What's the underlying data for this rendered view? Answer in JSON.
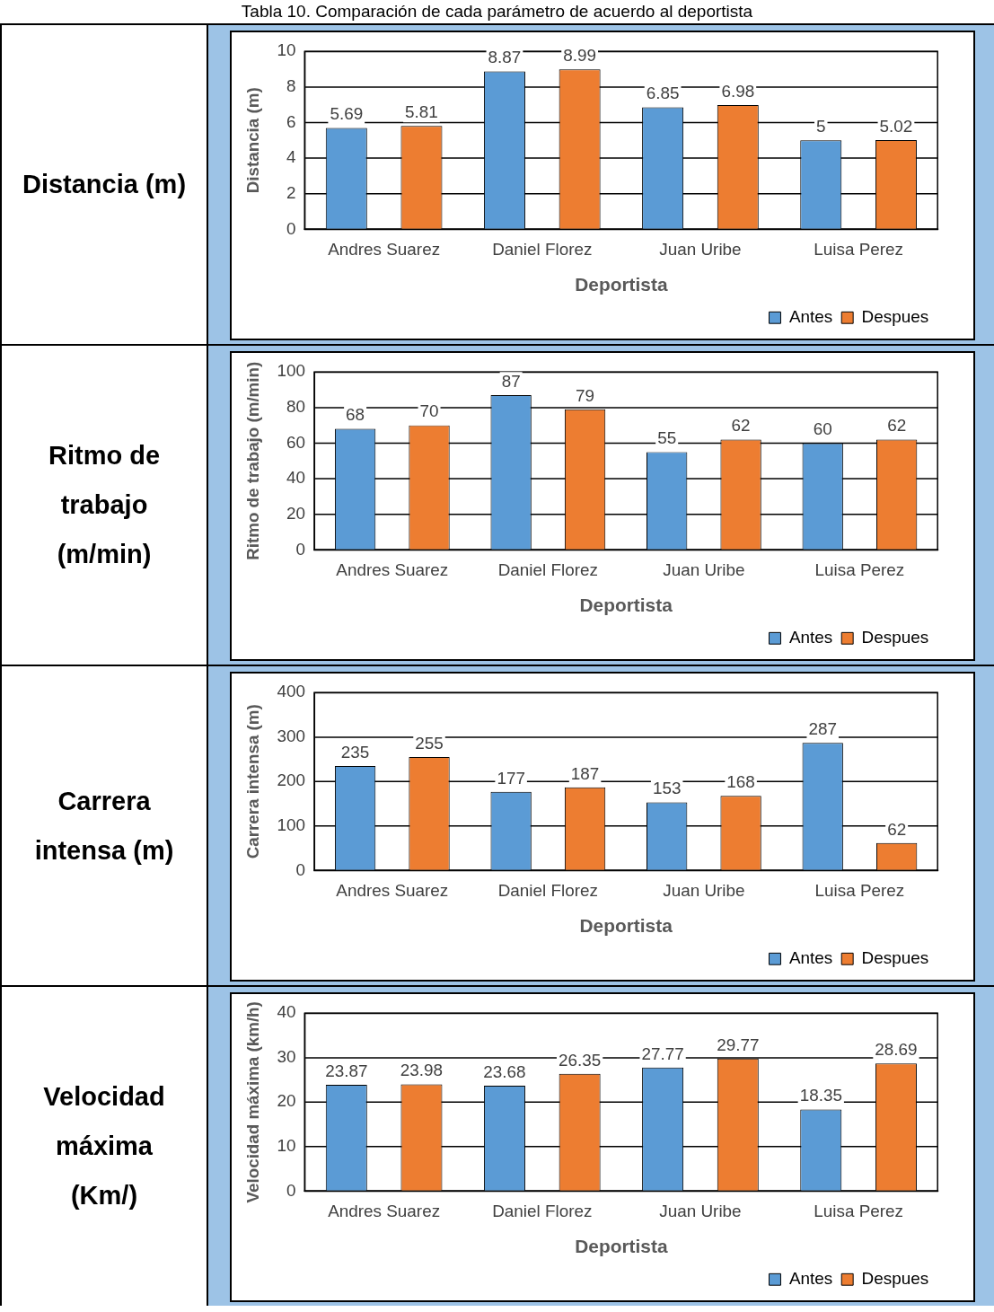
{
  "chart_data": [
    {
      "type": "bar",
      "title": "Tabla 10. Comparación de cada parámetro de acuerdo al deportista",
      "annotations": [
        "Distancia (m)"
      ],
      "xlabel": "Deportista",
      "ylabel": "Distancia (m)",
      "categories": [
        "Andres Suarez",
        "Daniel Florez",
        "Juan Uribe",
        "Luisa Perez"
      ],
      "series": [
        {
          "name": "Antes",
          "color": "#5b9bd5",
          "values": [
            5.69,
            8.87,
            6.85,
            5
          ]
        },
        {
          "name": "Despues",
          "color": "#ed7d31",
          "values": [
            5.81,
            8.99,
            6.98,
            5.02
          ]
        }
      ],
      "ylim": [
        0,
        10
      ],
      "yticks": [
        0,
        2,
        4,
        6,
        8,
        10
      ],
      "grid": "y",
      "legend": "bottom right",
      "data_labels": true
    },
    {
      "type": "bar",
      "annotations": [
        "Ritmo de trabajo (m/min)"
      ],
      "xlabel": "Deportista",
      "ylabel": "Ritmo de trabajo (m/min)",
      "categories": [
        "Andres Suarez",
        "Daniel Florez",
        "Juan Uribe",
        "Luisa Perez"
      ],
      "series": [
        {
          "name": "Antes",
          "color": "#5b9bd5",
          "values": [
            68,
            87,
            55,
            60
          ]
        },
        {
          "name": "Despues",
          "color": "#ed7d31",
          "values": [
            70,
            79,
            62,
            62
          ]
        }
      ],
      "ylim": [
        0,
        100
      ],
      "yticks": [
        0,
        20,
        40,
        60,
        80,
        100
      ],
      "grid": "y",
      "legend": "bottom right",
      "data_labels": true
    },
    {
      "type": "bar",
      "annotations": [
        "Carrera intensa (m)"
      ],
      "xlabel": "Deportista",
      "ylabel": "Carrera intensa (m)",
      "categories": [
        "Andres Suarez",
        "Daniel Florez",
        "Juan Uribe",
        "Luisa Perez"
      ],
      "series": [
        {
          "name": "Antes",
          "color": "#5b9bd5",
          "values": [
            235,
            177,
            153,
            287
          ]
        },
        {
          "name": "Despues",
          "color": "#ed7d31",
          "values": [
            255,
            187,
            168,
            62
          ]
        }
      ],
      "ylim": [
        0,
        400
      ],
      "yticks": [
        0,
        100,
        200,
        300,
        400
      ],
      "grid": "y",
      "legend": "bottom right",
      "data_labels": true
    },
    {
      "type": "bar",
      "annotations": [
        "Velocidad máxima (Km/)"
      ],
      "xlabel": "Deportista",
      "ylabel": "Velocidad máxima (km/h)",
      "categories": [
        "Andres Suarez",
        "Daniel Florez",
        "Juan Uribe",
        "Luisa Perez"
      ],
      "series": [
        {
          "name": "Antes",
          "color": "#5b9bd5",
          "values": [
            23.87,
            23.68,
            27.77,
            18.35
          ]
        },
        {
          "name": "Despues",
          "color": "#ed7d31",
          "values": [
            23.98,
            26.35,
            29.77,
            28.69
          ]
        }
      ],
      "ylim": [
        0,
        40
      ],
      "yticks": [
        0,
        10,
        20,
        30,
        40
      ],
      "grid": "y",
      "legend": "bottom right",
      "data_labels": true
    }
  ]
}
